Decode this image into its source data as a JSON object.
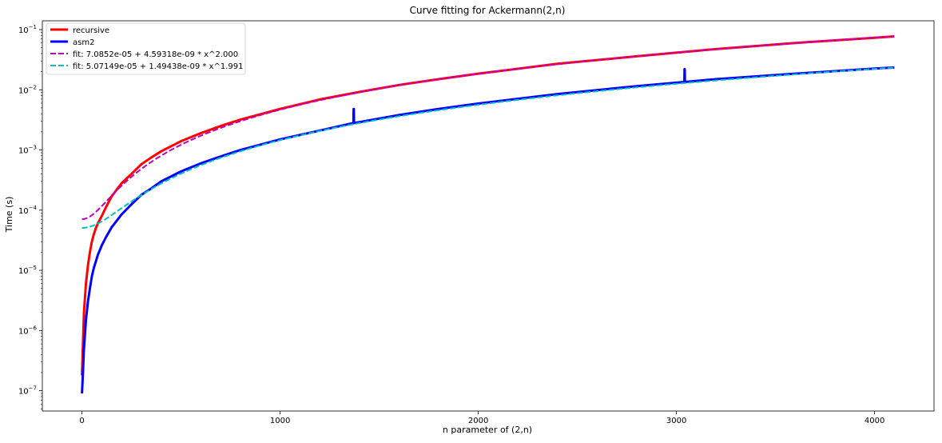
{
  "chart_data": {
    "type": "line",
    "title": "Curve fitting for Ackermann(2,n)",
    "xlabel": "n parameter of (2,n)",
    "ylabel": "Time (s)",
    "xlim": [
      -200,
      4300
    ],
    "ylim": [
      4.6e-08,
      0.14
    ],
    "yscale": "log",
    "grid": false,
    "legend_position": "top-left",
    "x_ticks": [
      {
        "value": 0,
        "label": "0"
      },
      {
        "value": 1000,
        "label": "1000"
      },
      {
        "value": 2000,
        "label": "2000"
      },
      {
        "value": 3000,
        "label": "3000"
      },
      {
        "value": 4000,
        "label": "4000"
      }
    ],
    "y_ticks": [
      {
        "value": 1e-07,
        "base": "10",
        "exp": "−7"
      },
      {
        "value": 1e-06,
        "base": "10",
        "exp": "−6"
      },
      {
        "value": 1e-05,
        "base": "10",
        "exp": "−5"
      },
      {
        "value": 0.0001,
        "base": "10",
        "exp": "−4"
      },
      {
        "value": 0.001,
        "base": "10",
        "exp": "−3"
      },
      {
        "value": 0.01,
        "base": "10",
        "exp": "−2"
      },
      {
        "value": 0.1,
        "base": "10",
        "exp": "−1"
      }
    ],
    "series": [
      {
        "name": "recursive",
        "color": "#ff0000",
        "style": "solid",
        "x": [
          0,
          5,
          10,
          20,
          30,
          40,
          50,
          60,
          70,
          80,
          100,
          120,
          150,
          200,
          250,
          300,
          350,
          400,
          500,
          600,
          700,
          800,
          1000,
          1200,
          1400,
          1600,
          1800,
          2000,
          2400,
          2800,
          3200,
          3600,
          4000,
          4100
        ],
        "y": [
          1.8e-07,
          6e-07,
          2e-06,
          6e-06,
          1.2e-05,
          2e-05,
          3e-05,
          4e-05,
          5e-05,
          6e-05,
          8e-05,
          0.00011,
          0.00017,
          0.00028,
          0.0004,
          0.00058,
          0.00075,
          0.00095,
          0.0014,
          0.0019,
          0.0025,
          0.0032,
          0.0048,
          0.0069,
          0.0092,
          0.012,
          0.015,
          0.0185,
          0.027,
          0.036,
          0.0475,
          0.06,
          0.073,
          0.077
        ]
      },
      {
        "name": "asm2",
        "color": "#0000ff",
        "style": "solid",
        "x": [
          0,
          5,
          10,
          20,
          30,
          40,
          50,
          60,
          70,
          80,
          100,
          120,
          150,
          200,
          250,
          300,
          350,
          400,
          500,
          600,
          700,
          800,
          1000,
          1200,
          1370,
          1371,
          1372,
          1373,
          1400,
          1600,
          1800,
          2000,
          2400,
          2800,
          3040,
          3041,
          3042,
          3043,
          3200,
          3600,
          4000,
          4100
        ],
        "y": [
          9e-08,
          2e-07,
          5e-07,
          1.5e-06,
          3e-06,
          5e-06,
          8e-06,
          1.1e-05,
          1.4e-05,
          1.8e-05,
          2.6e-05,
          3.5e-05,
          5.2e-05,
          8.5e-05,
          0.000125,
          0.00018,
          0.00023,
          0.0003,
          0.00044,
          0.0006,
          0.00078,
          0.001,
          0.0015,
          0.0021,
          0.0028,
          0.0048,
          0.0048,
          0.0028,
          0.0029,
          0.0038,
          0.0048,
          0.0059,
          0.0085,
          0.0115,
          0.0135,
          0.022,
          0.022,
          0.0135,
          0.015,
          0.0185,
          0.0225,
          0.0235
        ]
      },
      {
        "name": "fit: 7.0852e-05 + 4.59318e-09 * x^2.000",
        "color": "#bf00bf",
        "style": "dashed",
        "formula": {
          "a": 7.0852e-05,
          "b": 4.59318e-09,
          "c": 2.0
        },
        "x_range": [
          0,
          4100
        ]
      },
      {
        "name": "fit: 5.07149e-05 + 1.49438e-09 * x^1.991",
        "color": "#00bfbf",
        "style": "dashed",
        "formula": {
          "a": 5.07149e-05,
          "b": 1.49438e-09,
          "c": 1.991
        },
        "x_range": [
          0,
          4100
        ]
      }
    ]
  }
}
